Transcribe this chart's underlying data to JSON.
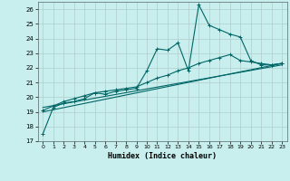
{
  "xlabel": "Humidex (Indice chaleur)",
  "background_color": "#c8eeee",
  "grid_color": "#b0cccc",
  "line_color": "#006666",
  "xlim": [
    -0.5,
    23.5
  ],
  "ylim": [
    17,
    26.5
  ],
  "yticks": [
    17,
    18,
    19,
    20,
    21,
    22,
    23,
    24,
    25,
    26
  ],
  "xticks": [
    0,
    1,
    2,
    3,
    4,
    5,
    6,
    7,
    8,
    9,
    10,
    11,
    12,
    13,
    14,
    15,
    16,
    17,
    18,
    19,
    20,
    21,
    22,
    23
  ],
  "series1_x": [
    0,
    1,
    2,
    3,
    4,
    5,
    6,
    7,
    8,
    9,
    10,
    11,
    12,
    13,
    14,
    15,
    16,
    17,
    18,
    19,
    20,
    21,
    22,
    23
  ],
  "series1_y": [
    17.5,
    19.3,
    19.6,
    19.7,
    19.9,
    20.3,
    20.2,
    20.4,
    20.5,
    20.6,
    21.8,
    23.3,
    23.2,
    23.7,
    21.8,
    26.3,
    24.9,
    24.6,
    24.3,
    24.1,
    22.5,
    22.2,
    22.2,
    22.3
  ],
  "series2_x": [
    0,
    1,
    2,
    3,
    4,
    5,
    6,
    7,
    8,
    9,
    10,
    11,
    12,
    13,
    14,
    15,
    16,
    17,
    18,
    19,
    20,
    21,
    22,
    23
  ],
  "series2_y": [
    19.1,
    19.4,
    19.7,
    19.9,
    20.1,
    20.3,
    20.4,
    20.5,
    20.6,
    20.7,
    21.0,
    21.3,
    21.5,
    21.8,
    22.0,
    22.3,
    22.5,
    22.7,
    22.9,
    22.5,
    22.4,
    22.3,
    22.2,
    22.3
  ],
  "series3_x": [
    0,
    23
  ],
  "series3_y": [
    19.0,
    22.3
  ],
  "series4_x": [
    0,
    23
  ],
  "series4_y": [
    19.3,
    22.2
  ]
}
